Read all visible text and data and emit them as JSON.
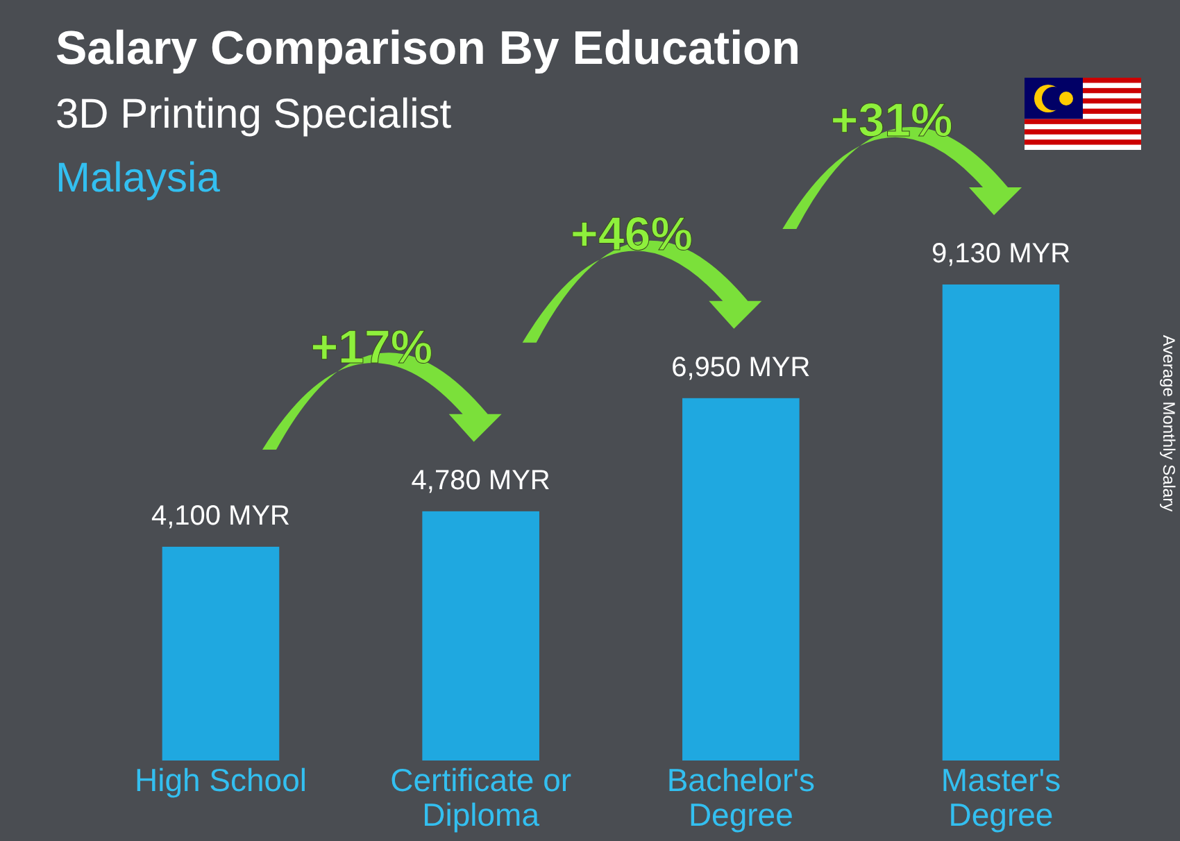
{
  "chart_data": {
    "type": "bar",
    "title": "Salary Comparison By Education",
    "subtitle": "3D Printing Specialist",
    "ylabel": "Average Monthly Salary",
    "categories": [
      "High School",
      "Certificate or Diploma",
      "Bachelor's Degree",
      "Master's Degree"
    ],
    "values": [
      4100,
      4780,
      6950,
      9130
    ],
    "color": "#1fa8e0",
    "value_labels": [
      "4,100 MYR",
      "4,780 MYR",
      "6,950 MYR",
      "9,130 MYR"
    ],
    "annotations": [
      "Malaysia",
      "+17%",
      "+46%",
      "+31%"
    ],
    "grid": false
  }
}
